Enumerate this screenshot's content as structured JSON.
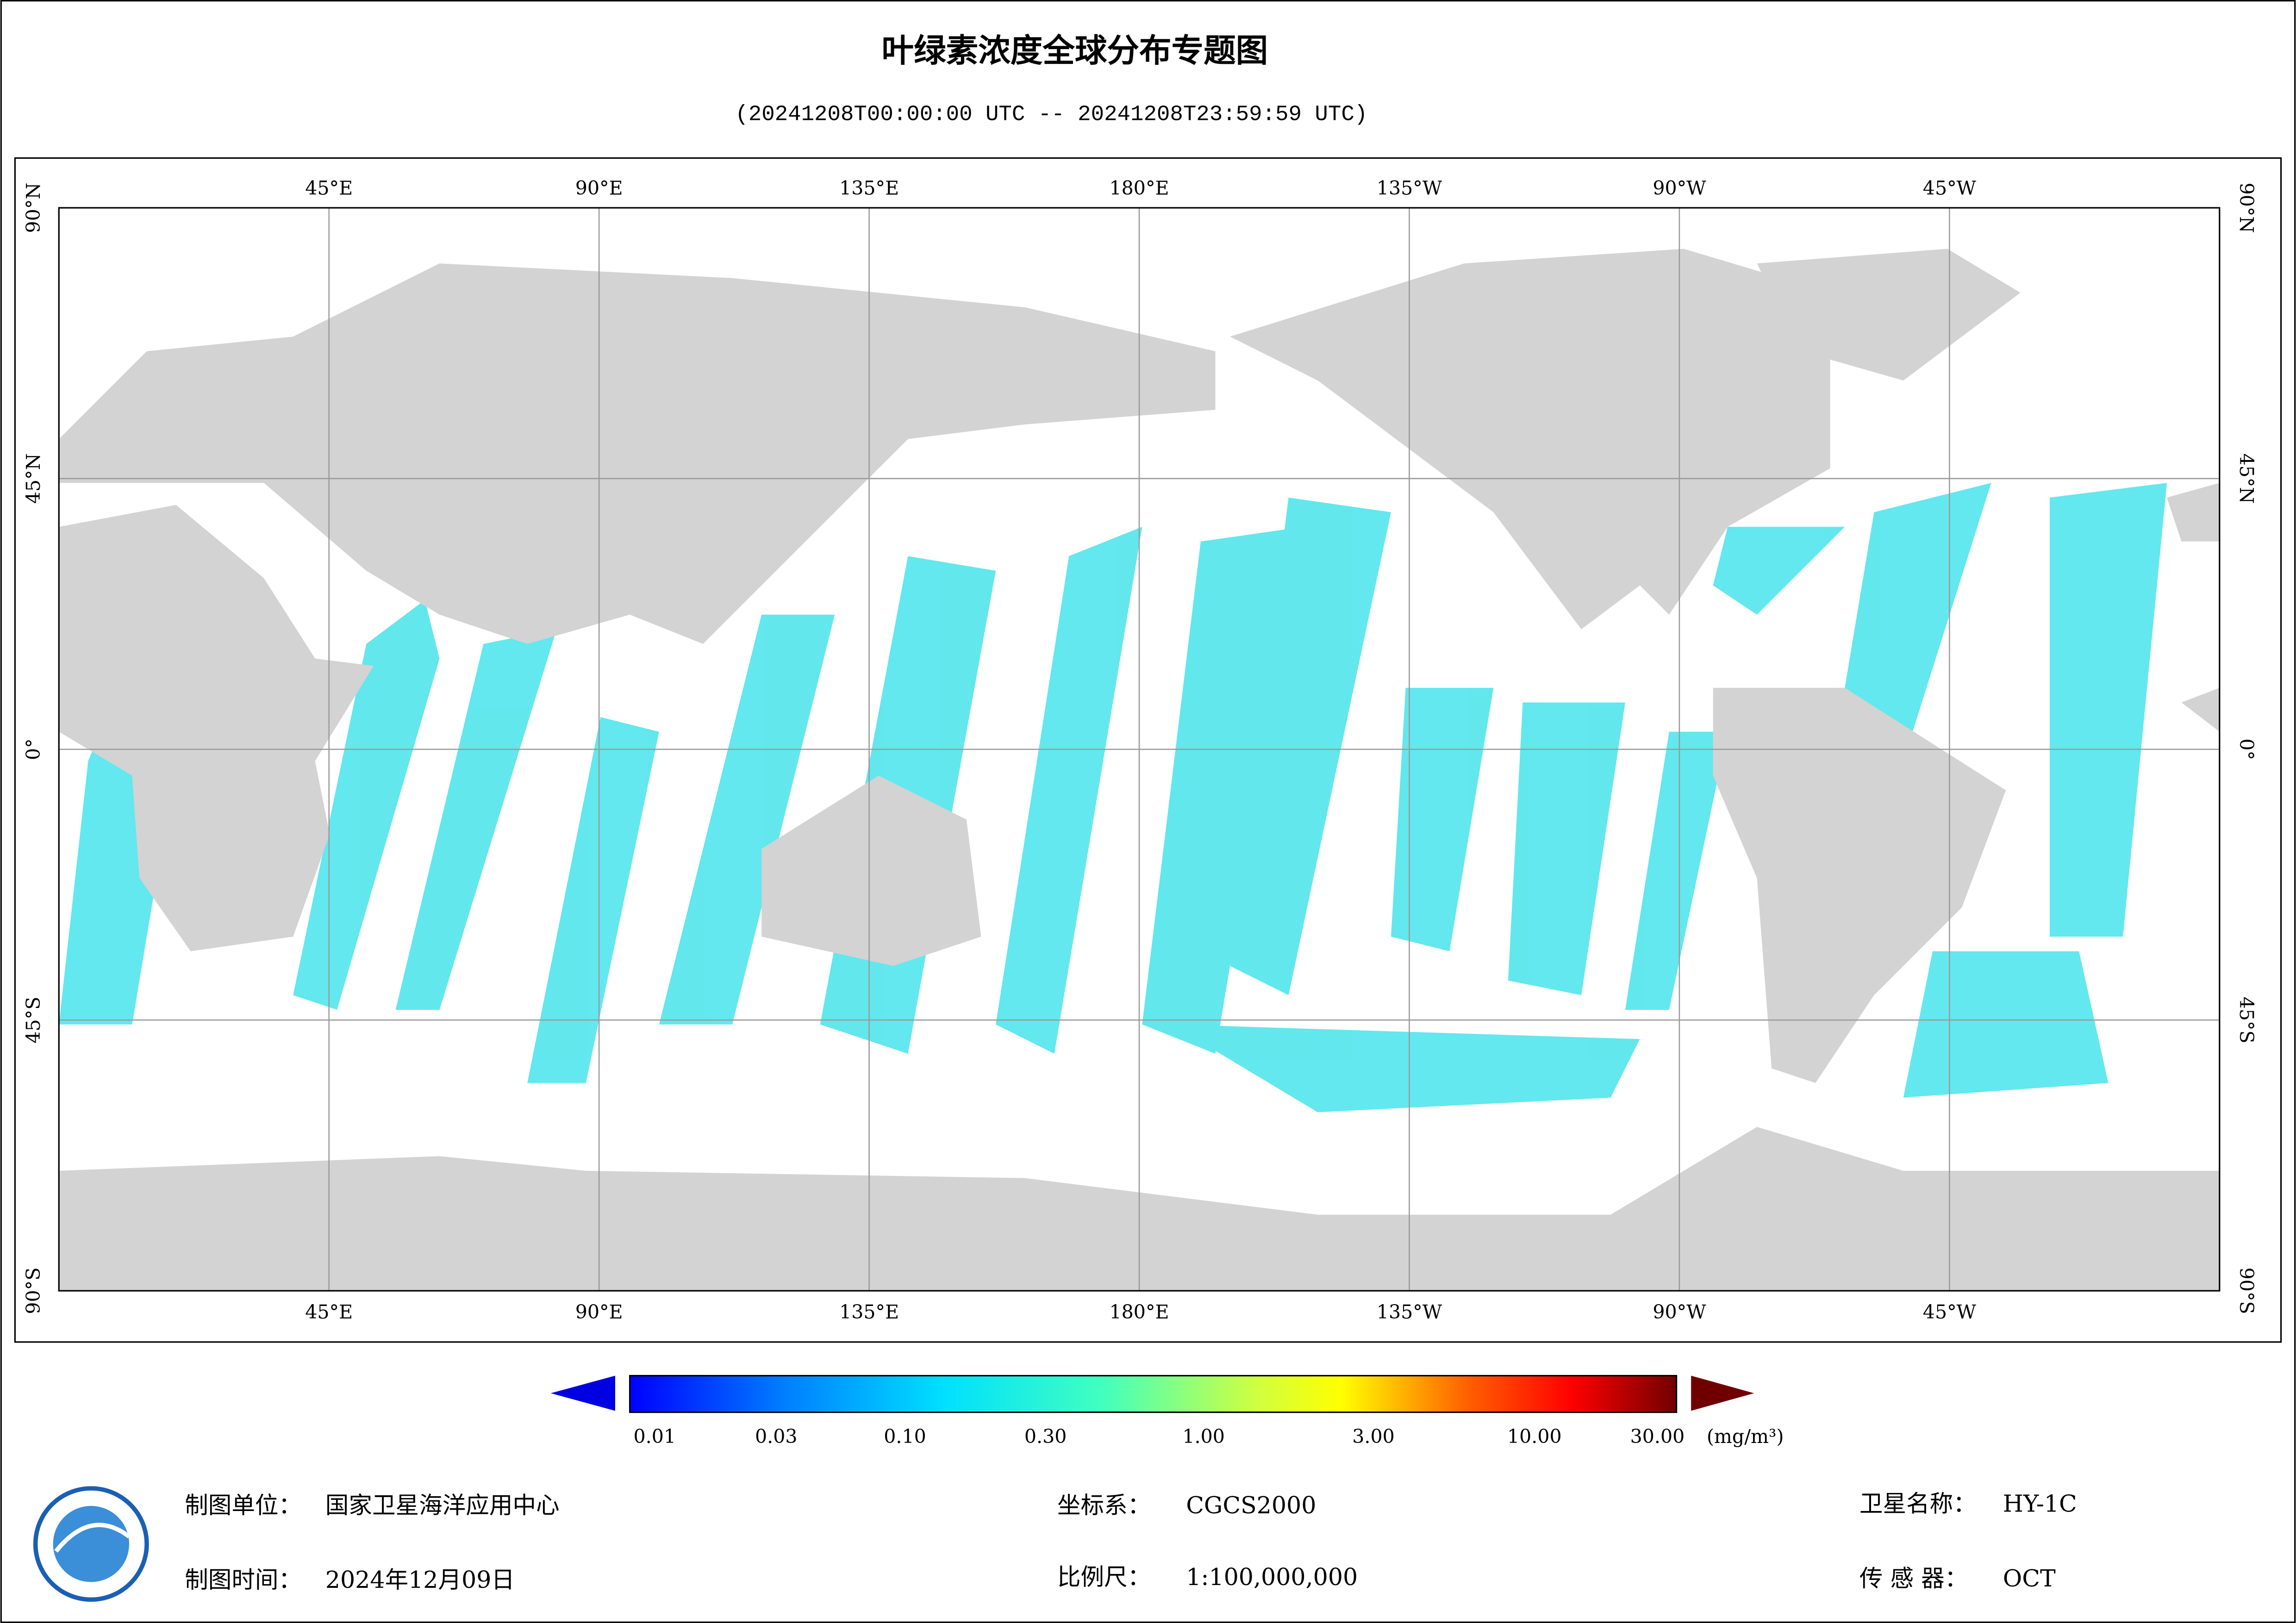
{
  "title": "叶绿素浓度全球分布专题图",
  "subtitle": "(20241208T00:00:00 UTC -- 20241208T23:59:59 UTC)",
  "map": {
    "lon_labels": [
      "45°E",
      "90°E",
      "135°E",
      "180°E",
      "135°W",
      "90°W",
      "45°W"
    ],
    "lat_labels": [
      "90°N",
      "45°N",
      "0°",
      "45°S",
      "90°S"
    ]
  },
  "colorbar": {
    "labels": [
      "0.01",
      "0.03",
      "0.10",
      "0.30",
      "1.00",
      "3.00",
      "10.00",
      "30.00"
    ],
    "unit": "(mg/m³)"
  },
  "footer": {
    "unit_label": "制图单位：",
    "unit_value": "国家卫星海洋应用中心",
    "crs_label": "坐标系：",
    "crs_value": "CGCS2000",
    "satellite_label": "卫星名称：",
    "satellite_value": "HY-1C",
    "date_label": "制图时间：",
    "date_value": "2024年12月09日",
    "scale_label": "比例尺：",
    "scale_value": "1:100,000,000",
    "sensor_label": "传 感 器：",
    "sensor_value": "OCT"
  }
}
